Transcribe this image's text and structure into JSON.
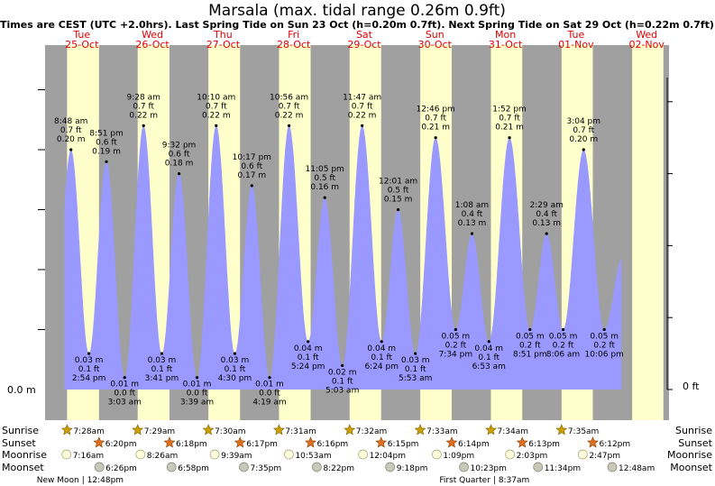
{
  "title": "Marsala (max. tidal range 0.26m 0.9ft)",
  "subtitle": "Times are CEST (UTC +2.0hrs). Last Spring Tide on Sun 23 Oct (h=0.20m 0.7ft). Next Spring Tide on Sat 29 Oct (h=0.22m 0.7ft)",
  "colors": {
    "night": "#a0a0a0",
    "day": "#ffffcc",
    "tide": "#9999ff",
    "daylabel": "#e00000",
    "sun": "#c8a000",
    "moon": "#d8d8d8"
  },
  "days": [
    {
      "name": "Tue",
      "date": "25-Oct"
    },
    {
      "name": "Wed",
      "date": "26-Oct"
    },
    {
      "name": "Thu",
      "date": "27-Oct"
    },
    {
      "name": "Fri",
      "date": "28-Oct"
    },
    {
      "name": "Sat",
      "date": "29-Oct"
    },
    {
      "name": "Sun",
      "date": "30-Oct"
    },
    {
      "name": "Mon",
      "date": "31-Oct"
    },
    {
      "name": "Tue",
      "date": "01-Nov"
    },
    {
      "name": "Wed",
      "date": "02-Nov"
    }
  ],
  "axis": {
    "left_label": "0.0 m",
    "right_label": "0 ft"
  },
  "chart_data": {
    "type": "area",
    "ylabel": "",
    "ylim": [
      0,
      0.25
    ],
    "extremes": [
      {
        "day": 0,
        "h": 8.8,
        "time": "8:48 am",
        "ft": "0.7 ft",
        "m": "0.20 m",
        "high": true
      },
      {
        "day": 0,
        "h": 14.9,
        "time": "2:54 pm",
        "ft": "0.1 ft",
        "m": "0.03 m",
        "high": false
      },
      {
        "day": 0,
        "h": 20.85,
        "time": "8:51 pm",
        "ft": "0.6 ft",
        "m": "0.19 m",
        "high": true
      },
      {
        "day": 1,
        "h": 3.05,
        "time": "3:03 am",
        "ft": "0.0 ft",
        "m": "0.01 m",
        "high": false
      },
      {
        "day": 1,
        "h": 9.47,
        "time": "9:28 am",
        "ft": "0.7 ft",
        "m": "0.22 m",
        "high": true
      },
      {
        "day": 1,
        "h": 15.68,
        "time": "3:41 pm",
        "ft": "0.1 ft",
        "m": "0.03 m",
        "high": false
      },
      {
        "day": 1,
        "h": 21.53,
        "time": "9:32 pm",
        "ft": "0.6 ft",
        "m": "0.18 m",
        "high": true
      },
      {
        "day": 2,
        "h": 3.65,
        "time": "3:39 am",
        "ft": "0.0 ft",
        "m": "0.01 m",
        "high": false
      },
      {
        "day": 2,
        "h": 10.17,
        "time": "10:10 am",
        "ft": "0.7 ft",
        "m": "0.22 m",
        "high": true
      },
      {
        "day": 2,
        "h": 16.5,
        "time": "4:30 pm",
        "ft": "0.1 ft",
        "m": "0.03 m",
        "high": false
      },
      {
        "day": 2,
        "h": 22.28,
        "time": "10:17 pm",
        "ft": "0.6 ft",
        "m": "0.17 m",
        "high": true
      },
      {
        "day": 3,
        "h": 4.32,
        "time": "4:19 am",
        "ft": "0.0 ft",
        "m": "0.01 m",
        "high": false
      },
      {
        "day": 3,
        "h": 10.93,
        "time": "10:56 am",
        "ft": "0.7 ft",
        "m": "0.22 m",
        "high": true
      },
      {
        "day": 3,
        "h": 17.4,
        "time": "5:24 pm",
        "ft": "0.1 ft",
        "m": "0.04 m",
        "high": false
      },
      {
        "day": 3,
        "h": 23.08,
        "time": "11:05 pm",
        "ft": "0.5 ft",
        "m": "0.16 m",
        "high": true
      },
      {
        "day": 4,
        "h": 5.05,
        "time": "5:03 am",
        "ft": "0.1 ft",
        "m": "0.02 m",
        "high": false
      },
      {
        "day": 4,
        "h": 11.78,
        "time": "11:47 am",
        "ft": "0.7 ft",
        "m": "0.22 m",
        "high": true
      },
      {
        "day": 4,
        "h": 18.4,
        "time": "6:24 pm",
        "ft": "0.1 ft",
        "m": "0.04 m",
        "high": false
      },
      {
        "day": 5,
        "h": 0.02,
        "time": "12:01 am",
        "ft": "0.5 ft",
        "m": "0.15 m",
        "high": true
      },
      {
        "day": 5,
        "h": 5.88,
        "time": "5:53 am",
        "ft": "0.1 ft",
        "m": "0.03 m",
        "high": false
      },
      {
        "day": 5,
        "h": 12.77,
        "time": "12:46 pm",
        "ft": "0.7 ft",
        "m": "0.21 m",
        "high": true
      },
      {
        "day": 5,
        "h": 19.57,
        "time": "7:34 pm",
        "ft": "0.2 ft",
        "m": "0.05 m",
        "high": false
      },
      {
        "day": 6,
        "h": 1.13,
        "time": "1:08 am",
        "ft": "0.4 ft",
        "m": "0.13 m",
        "high": true
      },
      {
        "day": 6,
        "h": 6.88,
        "time": "6:53 am",
        "ft": "0.1 ft",
        "m": "0.04 m",
        "high": false
      },
      {
        "day": 6,
        "h": 13.87,
        "time": "1:52 pm",
        "ft": "0.7 ft",
        "m": "0.21 m",
        "high": true
      },
      {
        "day": 6,
        "h": 20.85,
        "time": "8:51 pm",
        "ft": "0.2 ft",
        "m": "0.05 m",
        "high": false
      },
      {
        "day": 7,
        "h": 2.48,
        "time": "2:29 am",
        "ft": "0.4 ft",
        "m": "0.13 m",
        "high": true
      },
      {
        "day": 7,
        "h": 8.1,
        "time": "8:06 am",
        "ft": "0.2 ft",
        "m": "0.05 m",
        "high": false
      },
      {
        "day": 7,
        "h": 15.07,
        "time": "3:04 pm",
        "ft": "0.7 ft",
        "m": "0.20 m",
        "high": true
      },
      {
        "day": 7,
        "h": 22.1,
        "time": "10:06 pm",
        "ft": "0.2 ft",
        "m": "0.05 m",
        "high": false
      }
    ]
  },
  "sun_moon": {
    "labels": {
      "sunrise": "Sunrise",
      "sunset": "Sunset",
      "moonrise": "Moonrise",
      "moonset": "Moonset"
    },
    "sunrise": [
      {
        "day": 0,
        "h": 7.47,
        "text": "7:28am"
      },
      {
        "day": 1,
        "h": 7.48,
        "text": "7:29am"
      },
      {
        "day": 2,
        "h": 7.5,
        "text": "7:30am"
      },
      {
        "day": 3,
        "h": 7.52,
        "text": "7:31am"
      },
      {
        "day": 4,
        "h": 7.53,
        "text": "7:32am"
      },
      {
        "day": 5,
        "h": 7.55,
        "text": "7:33am"
      },
      {
        "day": 6,
        "h": 7.57,
        "text": "7:34am"
      },
      {
        "day": 7,
        "h": 7.58,
        "text": "7:35am"
      }
    ],
    "sunset": [
      {
        "day": 0,
        "h": 18.33,
        "text": "6:20pm"
      },
      {
        "day": 1,
        "h": 18.3,
        "text": "6:18pm"
      },
      {
        "day": 2,
        "h": 18.28,
        "text": "6:17pm"
      },
      {
        "day": 3,
        "h": 18.27,
        "text": "6:16pm"
      },
      {
        "day": 4,
        "h": 18.25,
        "text": "6:15pm"
      },
      {
        "day": 5,
        "h": 18.23,
        "text": "6:14pm"
      },
      {
        "day": 6,
        "h": 18.22,
        "text": "6:13pm"
      },
      {
        "day": 7,
        "h": 18.2,
        "text": "6:12pm"
      }
    ],
    "moonrise": [
      {
        "day": 0,
        "h": 7.27,
        "text": "7:16am"
      },
      {
        "day": 1,
        "h": 8.43,
        "text": "8:26am"
      },
      {
        "day": 2,
        "h": 9.65,
        "text": "9:39am"
      },
      {
        "day": 3,
        "h": 10.88,
        "text": "10:53am"
      },
      {
        "day": 4,
        "h": 12.07,
        "text": "12:04pm"
      },
      {
        "day": 5,
        "h": 13.15,
        "text": "1:09pm"
      },
      {
        "day": 6,
        "h": 14.05,
        "text": "2:03pm"
      },
      {
        "day": 7,
        "h": 14.78,
        "text": "2:47pm"
      }
    ],
    "moonset": [
      {
        "day": 0,
        "h": 18.43,
        "text": "6:26pm"
      },
      {
        "day": 1,
        "h": 18.97,
        "text": "6:58pm"
      },
      {
        "day": 2,
        "h": 19.58,
        "text": "7:35pm"
      },
      {
        "day": 3,
        "h": 20.37,
        "text": "8:22pm"
      },
      {
        "day": 4,
        "h": 21.3,
        "text": "9:18pm"
      },
      {
        "day": 5,
        "h": 22.38,
        "text": "10:23pm"
      },
      {
        "day": 6,
        "h": 23.57,
        "text": "11:34pm"
      },
      {
        "day": 8,
        "h": 0.8,
        "text": "12:48am"
      }
    ],
    "phases": [
      {
        "day": 0,
        "h": 12.8,
        "label": "New Moon",
        "time": "12:48pm"
      },
      {
        "day": 6,
        "h": 8.62,
        "label": "First Quarter",
        "time": "8:37am"
      }
    ]
  }
}
